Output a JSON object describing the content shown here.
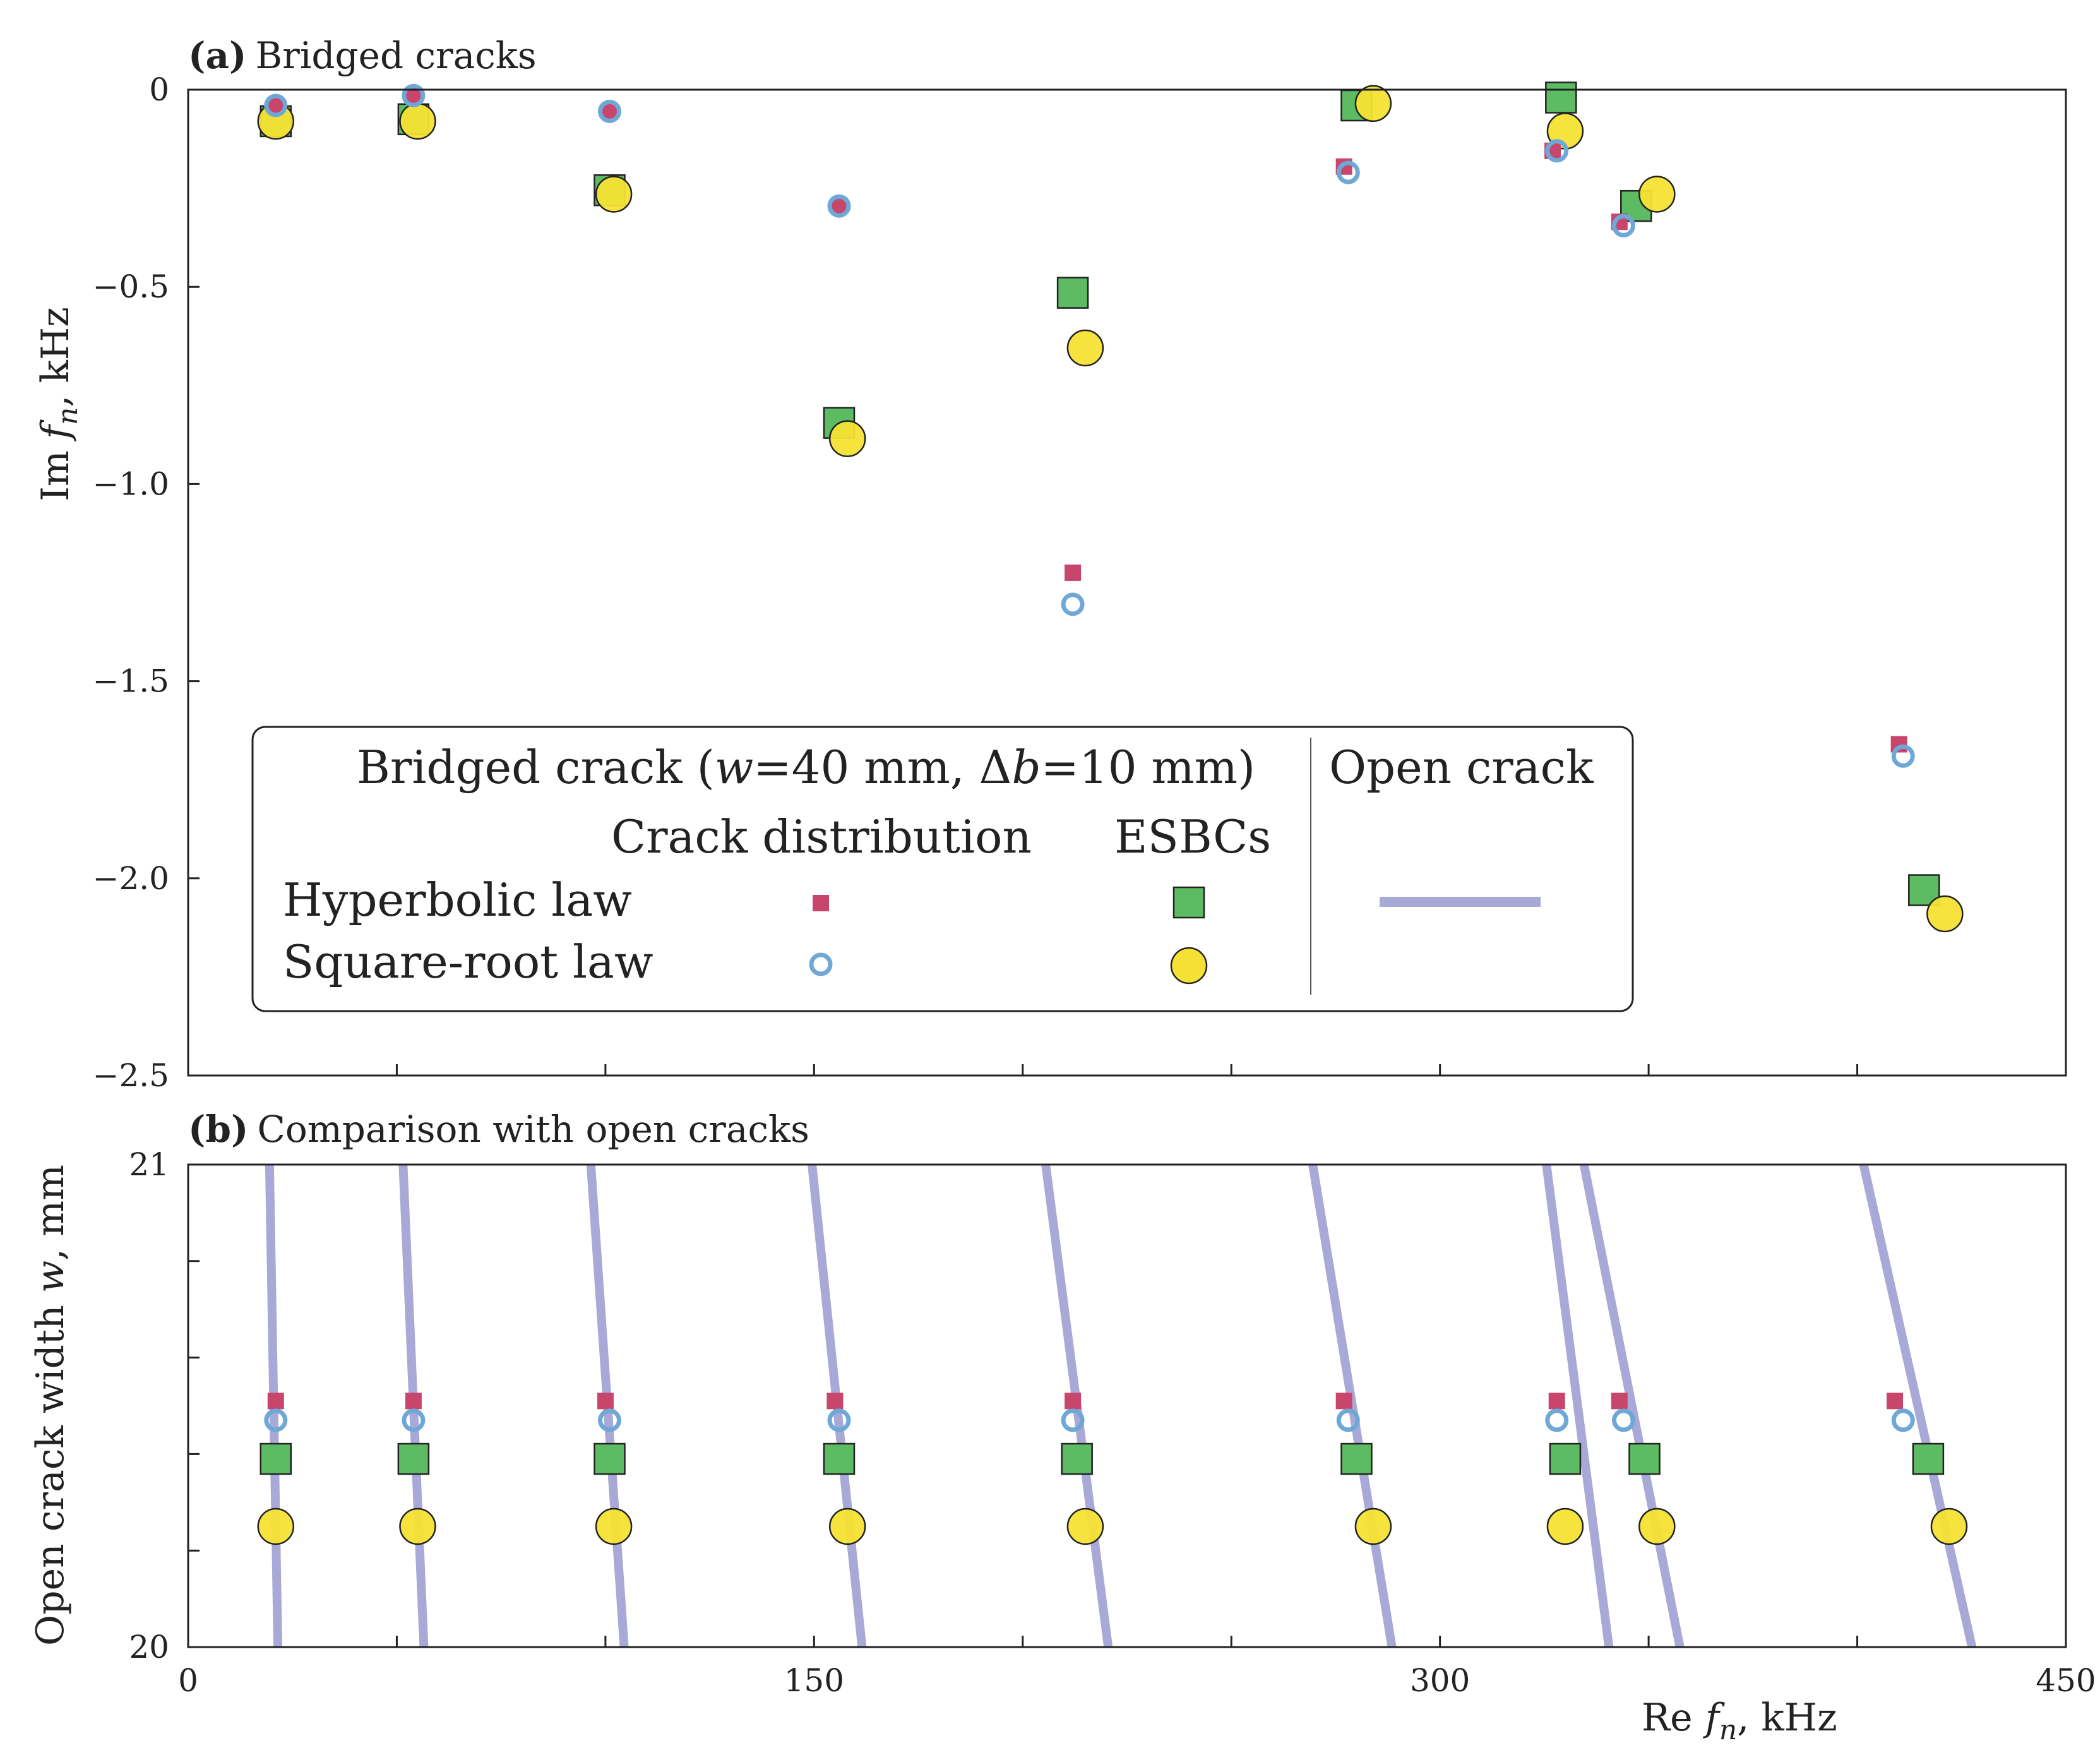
{
  "chart_data": [
    {
      "type": "scatter",
      "panel": "a",
      "title_bold": "(a)",
      "title": "Bridged cracks",
      "xlabel": "",
      "ylabel": "Im fn, kHz",
      "ylabel_main": "Im",
      "ylabel_var": "f",
      "ylabel_sub": "n",
      "ylabel_unit": ",  kHz",
      "xlim": [
        0,
        450
      ],
      "ylim": [
        -2.5,
        0
      ],
      "yticks": [
        0,
        -0.5,
        -1.0,
        -1.5,
        -2.0,
        -2.5
      ],
      "ytick_labels": [
        "0",
        "−0.5",
        "−1.0",
        "−1.5",
        "−2.0",
        "−2.5"
      ],
      "series": [
        {
          "name": "Crack distribution, Hyperbolic law",
          "marker": "small-square",
          "color": "#C8456B",
          "points": [
            [
              21,
              -0.04
            ],
            [
              54,
              -0.015
            ],
            [
              101,
              -0.055
            ],
            [
              156,
              -0.295
            ],
            [
              212,
              -1.225
            ],
            [
              277,
              -0.195
            ],
            [
              327,
              -0.155
            ],
            [
              343,
              -0.335
            ],
            [
              410,
              -1.66
            ]
          ]
        },
        {
          "name": "Crack distribution, Square-root law",
          "marker": "open-circle",
          "color": "#6FA8D6",
          "points": [
            [
              21,
              -0.04
            ],
            [
              54,
              -0.015
            ],
            [
              101,
              -0.055
            ],
            [
              156,
              -0.295
            ],
            [
              212,
              -1.305
            ],
            [
              278,
              -0.21
            ],
            [
              328,
              -0.155
            ],
            [
              344,
              -0.345
            ],
            [
              411,
              -1.69
            ]
          ]
        },
        {
          "name": "ESBCs, Hyperbolic law",
          "marker": "square",
          "color": "#5DBB63",
          "points": [
            [
              21,
              -0.08
            ],
            [
              54,
              -0.075
            ],
            [
              101,
              -0.255
            ],
            [
              156,
              -0.845
            ],
            [
              212,
              -0.515
            ],
            [
              280,
              -0.04
            ],
            [
              329,
              -0.02
            ],
            [
              347,
              -0.295
            ],
            [
              416,
              -2.03
            ]
          ]
        },
        {
          "name": "ESBCs, Square-root law",
          "marker": "circle",
          "color": "#F5E133",
          "points": [
            [
              21,
              -0.08
            ],
            [
              55,
              -0.08
            ],
            [
              102,
              -0.265
            ],
            [
              158,
              -0.885
            ],
            [
              215,
              -0.655
            ],
            [
              284,
              -0.035
            ],
            [
              330,
              -0.105
            ],
            [
              352,
              -0.265
            ],
            [
              421,
              -2.09
            ]
          ]
        }
      ]
    },
    {
      "type": "scatter",
      "panel": "b",
      "title_bold": "(b)",
      "title": "Comparison with open cracks",
      "xlabel": "Re fn, kHz",
      "xlabel_main": "Re",
      "xlabel_var": "f",
      "xlabel_sub": "n",
      "xlabel_unit": ",  kHz",
      "ylabel": "Open crack width w, mm",
      "ylabel_main": "Open crack width ",
      "ylabel_var": "w",
      "ylabel_unit": ", mm",
      "xlim": [
        0,
        450
      ],
      "ylim": [
        20,
        21
      ],
      "xticks": [
        0,
        150,
        300,
        450
      ],
      "xtick_labels": [
        "0",
        "150",
        "300",
        "450"
      ],
      "yticks": [
        20,
        21
      ],
      "ytick_labels": [
        "20",
        "21"
      ],
      "open_crack_lines": [
        {
          "x_at_w21": 19.5,
          "x_at_w20": 21.5
        },
        {
          "x_at_w21": 51.5,
          "x_at_w20": 56.5
        },
        {
          "x_at_w21": 96.5,
          "x_at_w20": 104.5
        },
        {
          "x_at_w21": 149.5,
          "x_at_w20": 161.5
        },
        {
          "x_at_w21": 205.5,
          "x_at_w20": 220.5
        },
        {
          "x_at_w21": 269.5,
          "x_at_w20": 288.5
        },
        {
          "x_at_w21": 325.5,
          "x_at_w20": 340.5
        },
        {
          "x_at_w21": 334.5,
          "x_at_w20": 357.5
        },
        {
          "x_at_w21": 401.5,
          "x_at_w20": 427.5
        }
      ],
      "series": [
        {
          "name": "Crack distribution, Hyperbolic law",
          "y": 20.51,
          "x": [
            21,
            54,
            100,
            155,
            212,
            277,
            328,
            343,
            409
          ]
        },
        {
          "name": "Crack distribution, Square-root law",
          "y": 20.47,
          "x": [
            21,
            54,
            101,
            156,
            212,
            278,
            328,
            344,
            411
          ]
        },
        {
          "name": "ESBCs, Hyperbolic law",
          "y": 20.39,
          "x": [
            21,
            54,
            101,
            156,
            213,
            280,
            330,
            349,
            417
          ]
        },
        {
          "name": "ESBCs, Square-root law",
          "y": 20.25,
          "x": [
            21,
            55,
            102,
            158,
            215,
            284,
            330,
            352,
            422
          ]
        }
      ]
    }
  ],
  "legend": {
    "header_main": "Bridged crack (",
    "header_w": "w",
    "header_mid": "=40 mm, Δ",
    "header_b": "b",
    "header_end": "=10 mm)",
    "open_crack": "Open crack",
    "col_crack_distribution": "Crack distribution",
    "col_esbcs": "ESBCs",
    "row_hyperbolic": "Hyperbolic law",
    "row_square_root": "Square-root law"
  },
  "colors": {
    "hyperbolic_small": "#C8456B",
    "sqrt_open": "#6FA8D6",
    "esbc_square": "#5DBB63",
    "esbc_circle": "#F5E133",
    "open_line": "#A9A9D8"
  }
}
